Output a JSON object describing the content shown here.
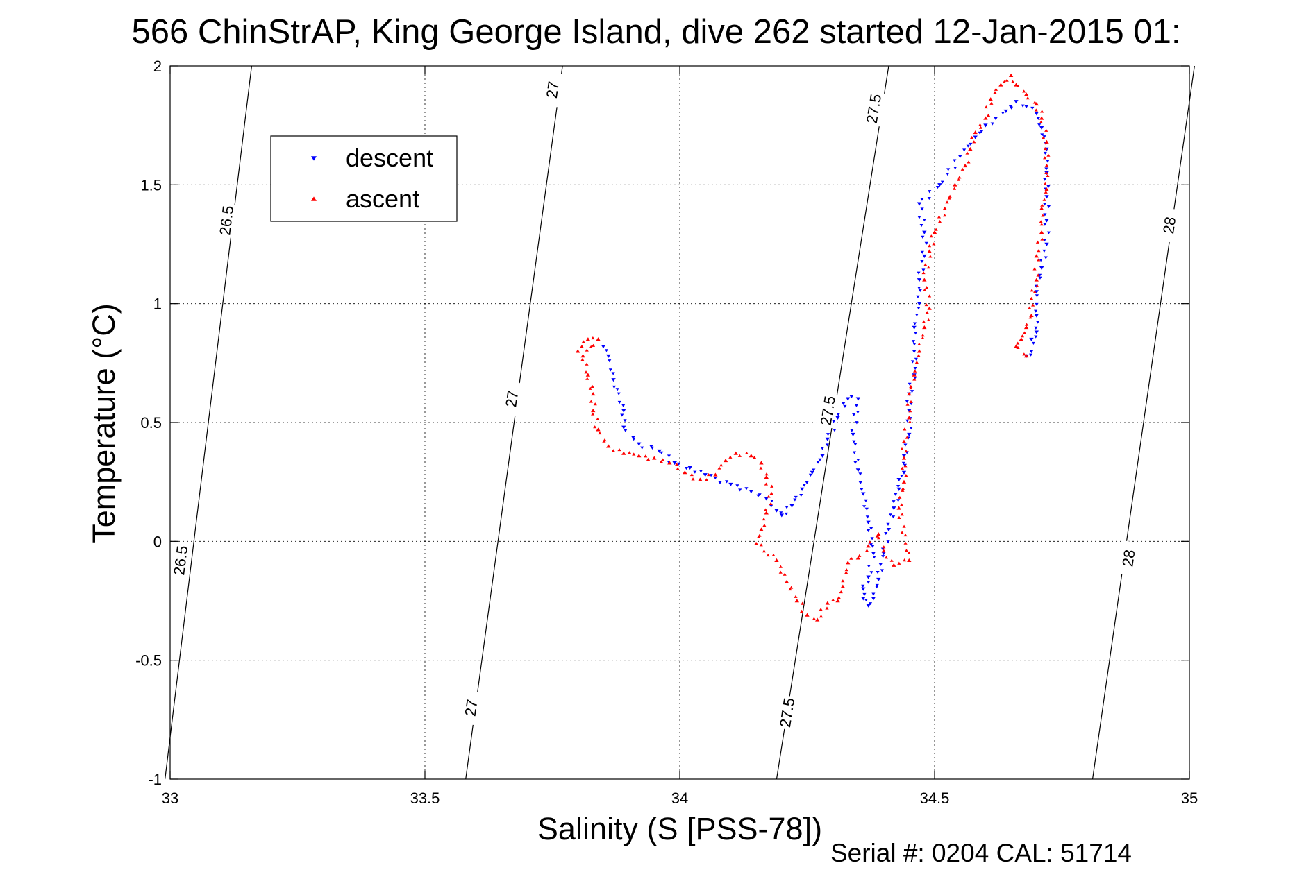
{
  "chart_data": {
    "type": "scatter",
    "title": "566 ChinStrAP, King George Island, dive 262 started 12-Jan-2015 01:",
    "xlabel": "Salinity (S [PSS-78])",
    "ylabel": "Temperature (°C)",
    "footer": "Serial #: 0204  CAL: 51714",
    "xlim": [
      33,
      35
    ],
    "ylim": [
      -1,
      2
    ],
    "xticks": [
      "33",
      "33.5",
      "34",
      "34.5",
      "35"
    ],
    "yticks": [
      "-1",
      "-0.5",
      "0",
      "0.5",
      "1",
      "1.5",
      "2"
    ],
    "grid": true,
    "legend_position": "upper-left",
    "legend": [
      {
        "name": "descent",
        "color": "#0000ff",
        "marker": "triangle-down"
      },
      {
        "name": "ascent",
        "color": "#ff0000",
        "marker": "triangle-up"
      }
    ],
    "isopycnals": [
      {
        "label": "26.5",
        "x_bottom": 32.99,
        "x_top": 33.16,
        "labels_at": [
          [
            33.02,
            -0.08
          ],
          [
            33.11,
            1.35
          ]
        ]
      },
      {
        "label": "27",
        "x_bottom": 33.58,
        "x_top": 33.77,
        "labels_at": [
          [
            33.59,
            -0.7
          ],
          [
            33.67,
            0.6
          ],
          [
            33.75,
            1.9
          ]
        ]
      },
      {
        "label": "27.5",
        "x_bottom": 34.19,
        "x_top": 34.41,
        "labels_at": [
          [
            34.21,
            -0.72
          ],
          [
            34.29,
            0.55
          ],
          [
            34.38,
            1.82
          ]
        ]
      },
      {
        "label": "28",
        "x_bottom": 34.81,
        "x_top": 35.01,
        "labels_at": [
          [
            34.88,
            -0.07
          ],
          [
            34.96,
            1.33
          ]
        ]
      }
    ],
    "series": [
      {
        "name": "descent",
        "color": "#0000ff",
        "points": [
          [
            33.85,
            0.82
          ],
          [
            33.86,
            0.78
          ],
          [
            33.87,
            0.68
          ],
          [
            33.89,
            0.55
          ],
          [
            33.89,
            0.48
          ],
          [
            33.92,
            0.41
          ],
          [
            33.96,
            0.38
          ],
          [
            33.99,
            0.33
          ],
          [
            34.02,
            0.31
          ],
          [
            34.05,
            0.28
          ],
          [
            34.1,
            0.24
          ],
          [
            34.14,
            0.21
          ],
          [
            34.17,
            0.18
          ],
          [
            34.19,
            0.13
          ],
          [
            34.2,
            0.11
          ],
          [
            34.22,
            0.15
          ],
          [
            34.24,
            0.22
          ],
          [
            34.26,
            0.29
          ],
          [
            34.28,
            0.36
          ],
          [
            34.29,
            0.43
          ],
          [
            34.31,
            0.52
          ],
          [
            34.33,
            0.6
          ],
          [
            34.35,
            0.6
          ],
          [
            34.34,
            0.45
          ],
          [
            34.35,
            0.3
          ],
          [
            34.36,
            0.2
          ],
          [
            34.37,
            0.08
          ],
          [
            34.38,
            -0.05
          ],
          [
            34.37,
            -0.15
          ],
          [
            34.36,
            -0.2
          ],
          [
            34.36,
            -0.24
          ],
          [
            34.37,
            -0.27
          ],
          [
            34.38,
            -0.24
          ],
          [
            34.39,
            -0.16
          ],
          [
            34.4,
            -0.05
          ],
          [
            34.41,
            0.05
          ],
          [
            34.42,
            0.14
          ],
          [
            34.43,
            0.22
          ],
          [
            34.43,
            0.26
          ],
          [
            34.44,
            0.29
          ],
          [
            34.44,
            0.36
          ],
          [
            34.45,
            0.45
          ],
          [
            34.45,
            0.55
          ],
          [
            34.45,
            0.62
          ],
          [
            34.46,
            0.7
          ],
          [
            34.46,
            0.8
          ],
          [
            34.46,
            0.9
          ],
          [
            34.47,
            1.0
          ],
          [
            34.47,
            1.1
          ],
          [
            34.48,
            1.2
          ],
          [
            34.48,
            1.3
          ],
          [
            34.47,
            1.42
          ],
          [
            34.51,
            1.5
          ],
          [
            34.55,
            1.62
          ],
          [
            34.58,
            1.7
          ],
          [
            34.6,
            1.75
          ],
          [
            34.62,
            1.78
          ],
          [
            34.64,
            1.81
          ],
          [
            34.66,
            1.85
          ],
          [
            34.68,
            1.83
          ],
          [
            34.7,
            1.8
          ],
          [
            34.71,
            1.74
          ],
          [
            34.72,
            1.65
          ],
          [
            34.72,
            1.55
          ],
          [
            34.72,
            1.45
          ],
          [
            34.72,
            1.35
          ],
          [
            34.72,
            1.25
          ],
          [
            34.71,
            1.15
          ],
          [
            34.7,
            1.05
          ],
          [
            34.7,
            0.95
          ],
          [
            34.7,
            0.88
          ],
          [
            34.69,
            0.85
          ],
          [
            34.69,
            0.8
          ],
          [
            34.68,
            0.78
          ]
        ]
      },
      {
        "name": "ascent",
        "color": "#ff0000",
        "points": [
          [
            33.8,
            0.8
          ],
          [
            33.82,
            0.85
          ],
          [
            33.84,
            0.85
          ],
          [
            33.81,
            0.78
          ],
          [
            33.82,
            0.7
          ],
          [
            33.83,
            0.62
          ],
          [
            33.83,
            0.55
          ],
          [
            33.84,
            0.47
          ],
          [
            33.86,
            0.4
          ],
          [
            33.89,
            0.37
          ],
          [
            33.92,
            0.36
          ],
          [
            33.95,
            0.35
          ],
          [
            33.98,
            0.33
          ],
          [
            34.01,
            0.29
          ],
          [
            34.04,
            0.26
          ],
          [
            34.07,
            0.28
          ],
          [
            34.09,
            0.34
          ],
          [
            34.11,
            0.37
          ],
          [
            34.14,
            0.36
          ],
          [
            34.16,
            0.33
          ],
          [
            34.17,
            0.27
          ],
          [
            34.18,
            0.2
          ],
          [
            34.17,
            0.12
          ],
          [
            34.16,
            0.05
          ],
          [
            34.15,
            -0.01
          ],
          [
            34.19,
            -0.08
          ],
          [
            34.21,
            -0.17
          ],
          [
            34.23,
            -0.25
          ],
          [
            34.25,
            -0.31
          ],
          [
            34.27,
            -0.33
          ],
          [
            34.29,
            -0.26
          ],
          [
            34.31,
            -0.25
          ],
          [
            34.32,
            -0.19
          ],
          [
            34.33,
            -0.09
          ],
          [
            34.35,
            -0.07
          ],
          [
            34.37,
            -0.02
          ],
          [
            34.39,
            0.03
          ],
          [
            34.4,
            -0.04
          ],
          [
            34.42,
            -0.1
          ],
          [
            34.45,
            -0.08
          ],
          [
            34.43,
            0.14
          ],
          [
            34.44,
            0.25
          ],
          [
            34.44,
            0.35
          ],
          [
            34.44,
            0.42
          ],
          [
            34.45,
            0.52
          ],
          [
            34.45,
            0.62
          ],
          [
            34.46,
            0.7
          ],
          [
            34.47,
            0.8
          ],
          [
            34.48,
            0.9
          ],
          [
            34.49,
            0.98
          ],
          [
            34.48,
            1.1
          ],
          [
            34.49,
            1.22
          ],
          [
            34.5,
            1.3
          ],
          [
            34.52,
            1.4
          ],
          [
            34.54,
            1.5
          ],
          [
            34.56,
            1.58
          ],
          [
            34.57,
            1.65
          ],
          [
            34.58,
            1.72
          ],
          [
            34.6,
            1.78
          ],
          [
            34.61,
            1.86
          ],
          [
            34.63,
            1.92
          ],
          [
            34.65,
            1.96
          ],
          [
            34.66,
            1.92
          ],
          [
            34.68,
            1.88
          ],
          [
            34.7,
            1.84
          ],
          [
            34.71,
            1.78
          ],
          [
            34.72,
            1.68
          ],
          [
            34.72,
            1.58
          ],
          [
            34.72,
            1.48
          ],
          [
            34.71,
            1.4
          ],
          [
            34.71,
            1.3
          ],
          [
            34.7,
            1.2
          ],
          [
            34.7,
            1.1
          ],
          [
            34.69,
            1.02
          ],
          [
            34.69,
            0.95
          ],
          [
            34.68,
            0.9
          ],
          [
            34.67,
            0.85
          ],
          [
            34.66,
            0.82
          ],
          [
            34.68,
            0.78
          ]
        ]
      }
    ]
  }
}
